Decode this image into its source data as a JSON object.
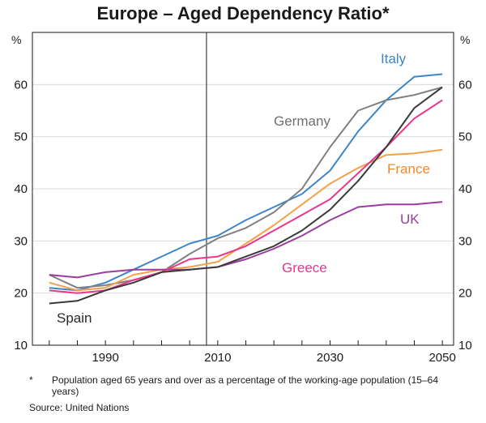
{
  "chart_data": {
    "type": "line",
    "title": "Europe – Aged Dependency Ratio*",
    "ylabel_left": "%",
    "ylabel_right": "%",
    "xlim": [
      1977,
      2052
    ],
    "ylim": [
      10,
      70
    ],
    "x_ticks": [
      1990,
      2010,
      2030,
      2050
    ],
    "y_ticks": [
      10,
      20,
      30,
      40,
      50,
      60
    ],
    "vline_x": 2008,
    "grid": true,
    "series": [
      {
        "name": "Italy",
        "color": "#3d86c8",
        "x": [
          1980,
          1985,
          1990,
          1995,
          2000,
          2005,
          2010,
          2015,
          2020,
          2025,
          2030,
          2035,
          2040,
          2045,
          2050
        ],
        "y": [
          21.0,
          20.5,
          22.0,
          24.5,
          27.0,
          29.5,
          31.0,
          34.0,
          36.5,
          39.0,
          43.5,
          51.0,
          57.0,
          61.5,
          62.0
        ]
      },
      {
        "name": "Germany",
        "color": "#808080",
        "x": [
          1980,
          1985,
          1990,
          1995,
          2000,
          2005,
          2010,
          2015,
          2020,
          2025,
          2030,
          2035,
          2040,
          2045,
          2050
        ],
        "y": [
          23.5,
          21.0,
          21.5,
          22.5,
          24.0,
          27.5,
          30.5,
          32.5,
          35.5,
          40.0,
          48.0,
          55.0,
          57.0,
          58.0,
          59.5
        ]
      },
      {
        "name": "France",
        "color": "#f5a04a",
        "x": [
          1980,
          1985,
          1990,
          1995,
          2000,
          2005,
          2010,
          2015,
          2020,
          2025,
          2030,
          2035,
          2040,
          2045,
          2050
        ],
        "y": [
          22.0,
          20.5,
          21.0,
          23.5,
          24.5,
          25.0,
          26.0,
          29.5,
          33.0,
          37.0,
          41.0,
          44.0,
          46.5,
          46.8,
          47.5
        ]
      },
      {
        "name": "UK",
        "color": "#9b3d9e",
        "x": [
          1980,
          1985,
          1990,
          1995,
          2000,
          2005,
          2010,
          2015,
          2020,
          2025,
          2030,
          2035,
          2040,
          2045,
          2050
        ],
        "y": [
          23.5,
          23.0,
          24.0,
          24.5,
          24.5,
          24.5,
          25.0,
          26.5,
          28.5,
          31.0,
          34.0,
          36.5,
          37.0,
          37.0,
          37.5
        ]
      },
      {
        "name": "Greece",
        "color": "#e8368f",
        "x": [
          1980,
          1985,
          1990,
          1995,
          2000,
          2005,
          2010,
          2015,
          2020,
          2025,
          2030,
          2035,
          2040,
          2045,
          2050
        ],
        "y": [
          20.5,
          20.0,
          20.5,
          22.5,
          24.0,
          26.5,
          27.0,
          29.0,
          32.0,
          35.0,
          38.0,
          43.0,
          48.0,
          53.5,
          57.0
        ]
      },
      {
        "name": "Spain",
        "color": "#3a3a3a",
        "x": [
          1980,
          1985,
          1990,
          1995,
          2000,
          2005,
          2010,
          2015,
          2020,
          2025,
          2030,
          2035,
          2040,
          2045,
          2050
        ],
        "y": [
          18.0,
          18.5,
          20.5,
          22.0,
          24.0,
          24.5,
          25.0,
          27.0,
          29.0,
          32.0,
          36.0,
          41.5,
          48.0,
          55.5,
          59.5
        ]
      }
    ],
    "labels": {
      "italy": "Italy",
      "germany": "Germany",
      "france": "France",
      "uk": "UK",
      "greece": "Greece",
      "spain": "Spain"
    }
  },
  "footnote": {
    "marker": "*",
    "text": "Population aged 65 years and over as a percentage of the working-age population (15–64 years)",
    "source": "Source: United Nations"
  }
}
